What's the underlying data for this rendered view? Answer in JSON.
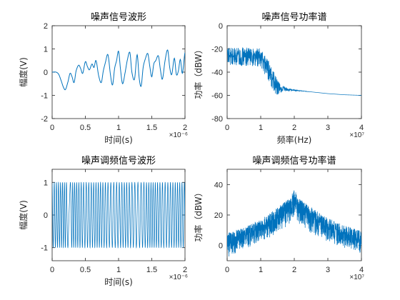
{
  "figure": {
    "colors": {
      "series": "#0072BD",
      "axes": "#262626",
      "background": "#ffffff"
    }
  },
  "chart_data": [
    {
      "type": "line",
      "title": "噪声信号波形",
      "xlabel": "时间(s)",
      "ylabel": "幅度(V)",
      "x_exponent": "×10⁻⁶",
      "xlim": [
        0,
        2
      ],
      "ylim": [
        -2,
        2
      ],
      "xticks": [
        "0",
        "0.5",
        "1",
        "1.5",
        "2"
      ],
      "yticks": [
        "-2",
        "-1",
        "0",
        "1",
        "2"
      ],
      "xtick_values": [
        0,
        0.5,
        1,
        1.5,
        2
      ],
      "ytick_values": [
        -2,
        -1,
        0,
        1,
        2
      ],
      "series": [
        {
          "x": [
            0,
            0.06,
            0.1,
            0.14,
            0.17,
            0.2,
            0.24,
            0.27,
            0.3,
            0.33,
            0.36,
            0.4,
            0.43,
            0.46,
            0.5,
            0.53,
            0.56,
            0.6,
            0.63,
            0.66,
            0.7,
            0.74,
            0.77,
            0.8,
            0.84,
            0.88,
            0.91,
            0.94,
            0.97,
            1.0,
            1.03,
            1.06,
            1.1,
            1.13,
            1.17,
            1.2,
            1.24,
            1.28,
            1.31,
            1.34,
            1.37,
            1.4,
            1.44,
            1.47,
            1.5,
            1.53,
            1.56,
            1.6,
            1.63,
            1.66,
            1.7,
            1.74,
            1.77,
            1.8,
            1.84,
            1.87,
            1.9,
            1.93,
            1.96,
            2.0
          ],
          "y": [
            0.0,
            0.0,
            -0.1,
            -0.4,
            -0.65,
            -0.75,
            -0.4,
            -0.05,
            -0.2,
            -0.45,
            0.05,
            0.3,
            0.15,
            -0.05,
            0.45,
            0.25,
            0.1,
            0.35,
            0.2,
            0.5,
            -0.15,
            -0.45,
            0.05,
            0.4,
            0.75,
            -0.15,
            -0.55,
            0.15,
            0.5,
            0.9,
            0.1,
            -0.5,
            0.0,
            0.5,
            0.85,
            0.0,
            -0.3,
            0.75,
            -0.25,
            -0.6,
            0.2,
            0.55,
            0.8,
            0.25,
            -0.2,
            0.35,
            0.5,
            0.7,
            0.1,
            -0.3,
            0.5,
            0.95,
            0.2,
            -0.1,
            0.6,
            -0.1,
            0.05,
            0.55,
            -0.05,
            0.85
          ]
        }
      ]
    },
    {
      "type": "line",
      "title": "噪声信号功率谱",
      "xlabel": "频率(Hz)",
      "ylabel": "功率（dBW）",
      "x_exponent": "×10⁷",
      "xlim": [
        0,
        4
      ],
      "ylim": [
        -80,
        0
      ],
      "xticks": [
        "0",
        "1",
        "2",
        "3",
        "4"
      ],
      "yticks": [
        "-80",
        "-60",
        "-40",
        "-20",
        "0"
      ],
      "xtick_values": [
        0,
        1,
        2,
        3,
        4
      ],
      "ytick_values": [
        -80,
        -60,
        -40,
        -20,
        0
      ],
      "series": [
        {
          "x": [
            0,
            0.8,
            1.0,
            1.2,
            1.4,
            1.5,
            1.6,
            2.0,
            2.5,
            3.0,
            3.5,
            4.0
          ],
          "y": [
            -25,
            -25,
            -26,
            -35,
            -47,
            -52,
            -54,
            -55.5,
            -57,
            -58.5,
            -59.5,
            -60
          ],
          "y_spread": [
            8,
            8,
            8,
            9,
            9,
            7,
            3,
            0.5,
            0,
            0,
            0,
            0
          ]
        }
      ]
    },
    {
      "type": "line",
      "title": "噪声调频信号波形",
      "xlabel": "时间(s)",
      "ylabel": "幅度(V)",
      "x_exponent": "×10⁻⁶",
      "xlim": [
        0,
        2
      ],
      "ylim": [
        -1.4,
        1.4
      ],
      "xticks": [
        "0",
        "0.5",
        "1",
        "1.5",
        "2"
      ],
      "yticks": [
        "-1",
        "0",
        "1"
      ],
      "xtick_values": [
        0,
        0.5,
        1,
        1.5,
        2
      ],
      "ytick_values": [
        -1,
        0,
        1
      ],
      "series": [
        {
          "x": [
            0,
            0.2,
            0.26,
            0.3,
            0.5,
            0.7,
            0.9,
            1.1,
            1.3,
            1.5,
            1.7,
            1.9,
            2.0
          ],
          "freq": [
            30,
            35,
            8,
            35,
            25,
            30,
            22,
            28,
            20,
            32,
            24,
            30,
            28
          ],
          "amplitude": 1.0
        }
      ]
    },
    {
      "type": "line",
      "title": "噪声调频信号功率谱",
      "xlabel": "",
      "ylabel": "功率（dBW）",
      "x_exponent": "×10⁷",
      "xlim": [
        0,
        4
      ],
      "ylim": [
        -10,
        50
      ],
      "xticks": [
        "0",
        "1",
        "2",
        "3",
        "4"
      ],
      "yticks": [
        "0",
        "20",
        "40"
      ],
      "xtick_values": [
        0,
        1,
        2,
        3,
        4
      ],
      "ytick_values": [
        0,
        20,
        40
      ],
      "series": [
        {
          "x": [
            0,
            0.5,
            1.0,
            1.5,
            1.9,
            2.0,
            2.1,
            2.5,
            3.0,
            3.5,
            4.0
          ],
          "y_upper": [
            8,
            12,
            17,
            25,
            32,
            38,
            32,
            25,
            18,
            13,
            10
          ],
          "y_lower": [
            -8,
            -3,
            2,
            8,
            14,
            20,
            14,
            8,
            2,
            -2,
            -6
          ]
        }
      ]
    }
  ]
}
